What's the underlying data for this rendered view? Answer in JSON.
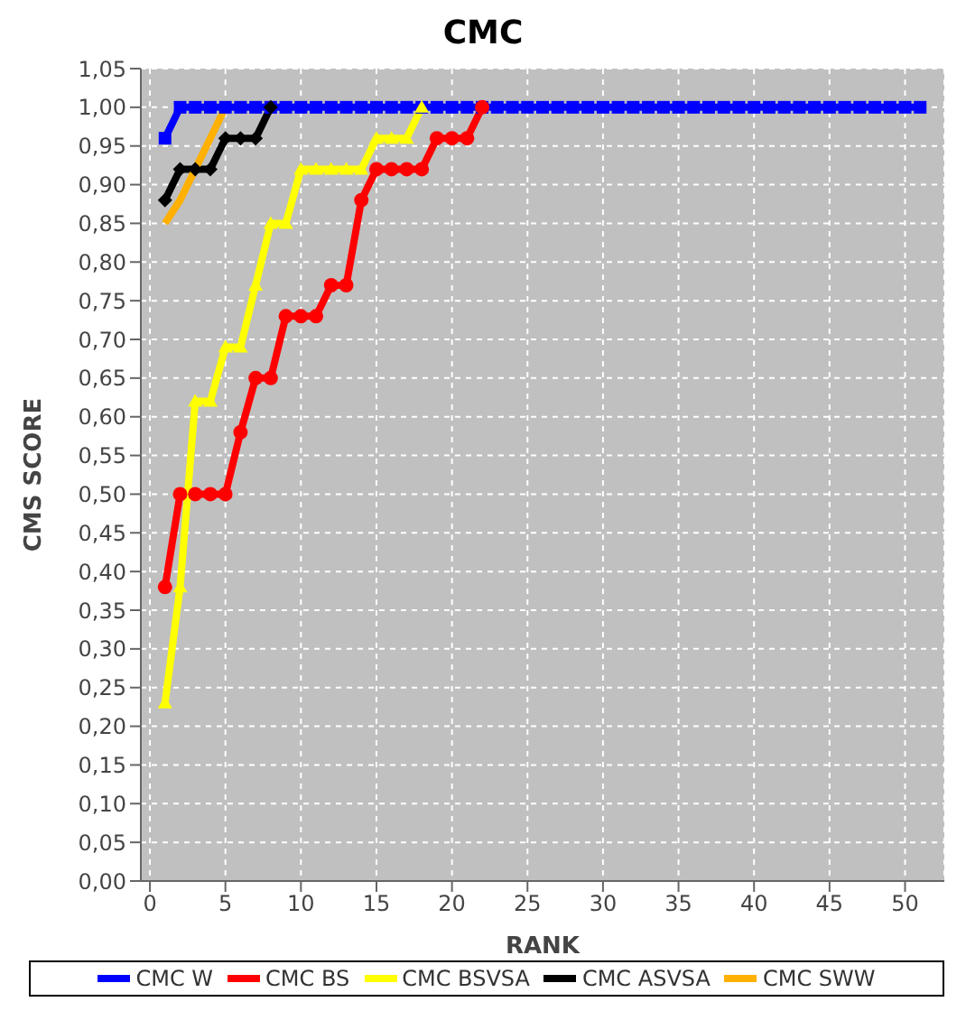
{
  "chart_data": {
    "type": "line",
    "title": "CMC",
    "xlabel": "RANK",
    "ylabel": "CMS SCORE",
    "xlim": [
      -0.6,
      52.6
    ],
    "xticks": [
      0,
      5,
      10,
      15,
      20,
      25,
      30,
      35,
      40,
      45,
      50
    ],
    "ylim": [
      0,
      1.05
    ],
    "yticks": [
      {
        "value": 0,
        "label": "0,00"
      },
      {
        "value": 0.05,
        "label": "0,05"
      },
      {
        "value": 0.1,
        "label": "0,10"
      },
      {
        "value": 0.15,
        "label": "0,15"
      },
      {
        "value": 0.2,
        "label": "0,20"
      },
      {
        "value": 0.25,
        "label": "0,25"
      },
      {
        "value": 0.3,
        "label": "0,30"
      },
      {
        "value": 0.35,
        "label": "0,35"
      },
      {
        "value": 0.4,
        "label": "0,40"
      },
      {
        "value": 0.45,
        "label": "0,45"
      },
      {
        "value": 0.5,
        "label": "0,50"
      },
      {
        "value": 0.55,
        "label": "0,55"
      },
      {
        "value": 0.6,
        "label": "0,60"
      },
      {
        "value": 0.65,
        "label": "0,65"
      },
      {
        "value": 0.7,
        "label": "0,70"
      },
      {
        "value": 0.75,
        "label": "0,75"
      },
      {
        "value": 0.8,
        "label": "0,80"
      },
      {
        "value": 0.85,
        "label": "0,85"
      },
      {
        "value": 0.9,
        "label": "0,90"
      },
      {
        "value": 0.95,
        "label": "0,95"
      },
      {
        "value": 1,
        "label": "1,00"
      },
      {
        "value": 1.05,
        "label": "1,05"
      }
    ],
    "grid": true,
    "legend": "bottom",
    "series": [
      {
        "name": "CMC W",
        "color": "#0000ff",
        "marker": "square",
        "x": [
          1,
          2,
          3,
          4,
          5,
          6,
          7,
          8,
          9,
          10,
          11,
          12,
          13,
          14,
          15,
          16,
          17,
          18,
          19,
          20,
          21,
          22,
          23,
          24,
          25,
          26,
          27,
          28,
          29,
          30,
          31,
          32,
          33,
          34,
          35,
          36,
          37,
          38,
          39,
          40,
          41,
          42,
          43,
          44,
          45,
          46,
          47,
          48,
          49,
          50,
          51
        ],
        "values": [
          0.96,
          1,
          1,
          1,
          1,
          1,
          1,
          1,
          1,
          1,
          1,
          1,
          1,
          1,
          1,
          1,
          1,
          1,
          1,
          1,
          1,
          1,
          1,
          1,
          1,
          1,
          1,
          1,
          1,
          1,
          1,
          1,
          1,
          1,
          1,
          1,
          1,
          1,
          1,
          1,
          1,
          1,
          1,
          1,
          1,
          1,
          1,
          1,
          1,
          1,
          1
        ]
      },
      {
        "name": "CMC BS",
        "color": "#ff0000",
        "marker": "circle",
        "x": [
          1,
          2,
          3,
          4,
          5,
          6,
          7,
          8,
          9,
          10,
          11,
          12,
          13,
          14,
          15,
          16,
          17,
          18,
          19,
          20,
          21,
          22
        ],
        "values": [
          0.38,
          0.5,
          0.5,
          0.5,
          0.5,
          0.58,
          0.65,
          0.65,
          0.73,
          0.73,
          0.73,
          0.77,
          0.77,
          0.88,
          0.92,
          0.92,
          0.92,
          0.92,
          0.96,
          0.96,
          0.96,
          1
        ]
      },
      {
        "name": "CMC BSVSA",
        "color": "#ffff00",
        "marker": "triangle",
        "x": [
          1,
          2,
          3,
          4,
          5,
          6,
          7,
          8,
          9,
          10,
          11,
          12,
          13,
          14,
          15,
          16,
          17,
          18
        ],
        "values": [
          0.23,
          0.38,
          0.62,
          0.62,
          0.69,
          0.69,
          0.77,
          0.85,
          0.85,
          0.92,
          0.92,
          0.92,
          0.92,
          0.92,
          0.96,
          0.96,
          0.96,
          1
        ]
      },
      {
        "name": "CMC ASVSA",
        "color": "#000000",
        "marker": "diamond",
        "x": [
          1,
          2,
          3,
          4,
          5,
          6,
          7,
          8
        ],
        "values": [
          0.88,
          0.92,
          0.92,
          0.92,
          0.96,
          0.96,
          0.96,
          1
        ]
      },
      {
        "name": "CMC SWW",
        "color": "#ffb000",
        "marker": "none",
        "x": [
          1,
          2,
          3,
          4,
          5
        ],
        "values": [
          0.85,
          0.88,
          0.92,
          0.96,
          1
        ]
      }
    ]
  }
}
